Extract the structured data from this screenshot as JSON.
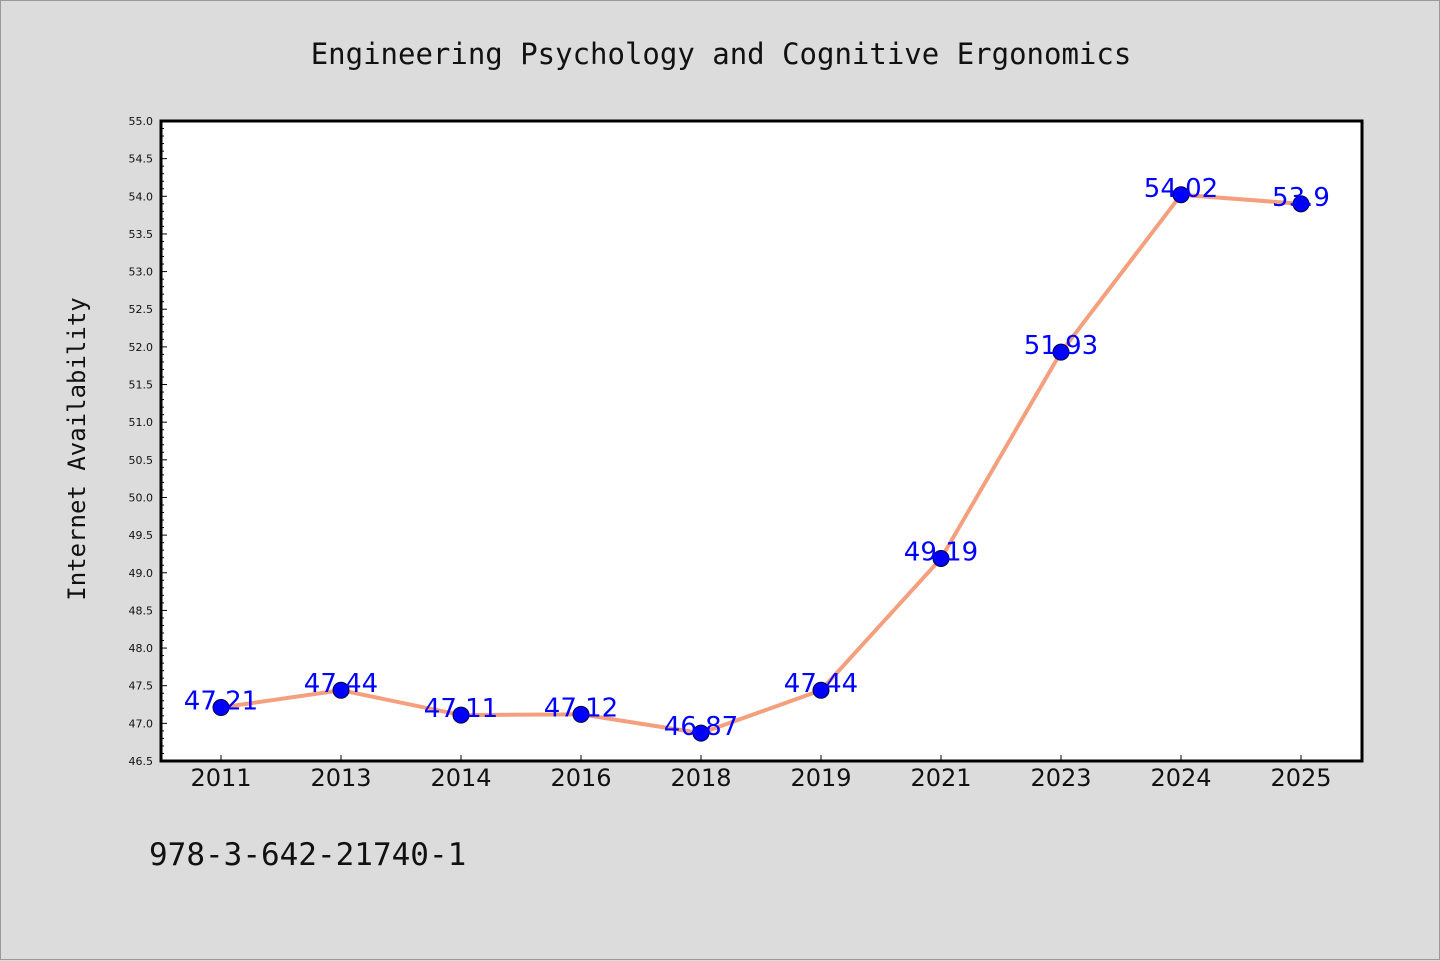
{
  "chart_data": {
    "type": "line",
    "title": "Engineering Psychology and Cognitive Ergonomics",
    "xlabel": "",
    "ylabel": "Internet Availability",
    "categories": [
      "2011",
      "2013",
      "2014",
      "2016",
      "2018",
      "2019",
      "2021",
      "2023",
      "2024",
      "2025"
    ],
    "series": [
      {
        "values": [
          47.21,
          47.44,
          47.11,
          47.12,
          46.87,
          47.44,
          49.19,
          51.93,
          54.02,
          53.9
        ],
        "labels": [
          "47.21",
          "47.44",
          "47.11",
          "47.12",
          "46.87",
          "47.44",
          "49.19",
          "51.93",
          "54.02",
          "53.9"
        ]
      }
    ],
    "ylim": [
      46.5,
      55.0
    ],
    "ytick_labels": [
      "46.5",
      "47.0",
      "47.5",
      "48.0",
      "48.5",
      "49.0",
      "49.5",
      "50.0",
      "50.5",
      "51.0",
      "51.5",
      "52.0",
      "52.5",
      "53.0",
      "53.5",
      "54.0",
      "54.5",
      "55.0"
    ],
    "grid": false,
    "legend": "none",
    "colors": {
      "line": "#f4a07e",
      "marker_fill": "#0000ff",
      "marker_stroke": "#00003a",
      "data_label": "#0000ff",
      "background": "#dcdcdc",
      "plot_background": "#ffffff"
    }
  },
  "footer_text": "978-3-642-21740-1"
}
